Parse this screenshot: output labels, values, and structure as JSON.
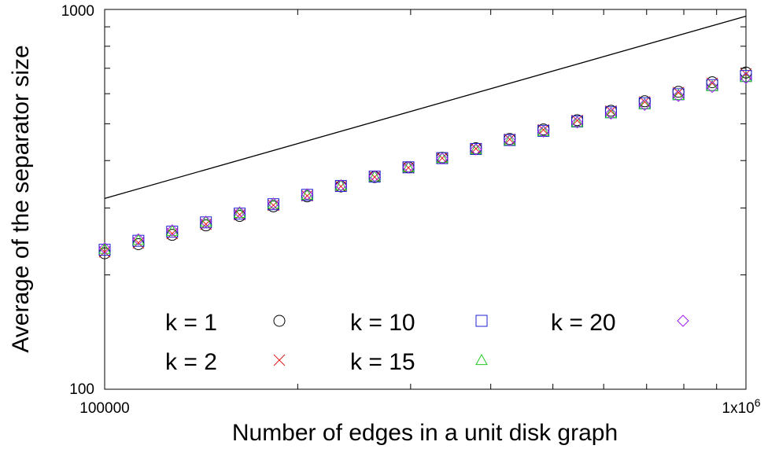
{
  "chart_data": {
    "type": "scatter",
    "xlabel": "Number of edges in a unit disk graph",
    "ylabel": "Average of the separator size",
    "x_scale": "log",
    "y_scale": "log",
    "xlim": [
      100000,
      1000000
    ],
    "ylim": [
      100,
      1000
    ],
    "x_tick_labels": [
      {
        "value": 100000,
        "text": "100000",
        "sup": ""
      },
      {
        "value": 1000000,
        "text": "1x10",
        "sup": "6"
      }
    ],
    "y_tick_labels": [
      {
        "value": 100,
        "text": "100"
      },
      {
        "value": 1000,
        "text": "1000"
      }
    ],
    "grid": false,
    "legend_location": "bottom-left inside",
    "reference_line": {
      "x": [
        100000,
        1000000
      ],
      "y": [
        318,
        960
      ],
      "color": "#000000"
    },
    "series": [
      {
        "name": "k = 1",
        "marker": "circle",
        "color": "#000000",
        "points_x": [
          100000,
          112884,
          127428,
          143849,
          162377,
          183303,
          206909,
          233575,
          263665,
          297635,
          335982,
          379269,
          428133,
          483293,
          545559,
          615848,
          695192,
          784760,
          885866,
          1000000
        ],
        "points_y": [
          228,
          241,
          255,
          270,
          286,
          303,
          322,
          342,
          362,
          384,
          407,
          431,
          456,
          483,
          511,
          541,
          573,
          607,
          643,
          682
        ]
      },
      {
        "name": "k = 2",
        "marker": "x",
        "color": "#e41a1c",
        "points_x": [
          100000,
          112884,
          127428,
          143849,
          162377,
          183303,
          206909,
          233575,
          263665,
          297635,
          335982,
          379269,
          428133,
          483293,
          545559,
          615848,
          695192,
          784760,
          885866,
          1000000
        ],
        "points_y": [
          230,
          243,
          257,
          272,
          288,
          305,
          323,
          342,
          362,
          383,
          406,
          430,
          455,
          482,
          510,
          540,
          571,
          604,
          639,
          676
        ]
      },
      {
        "name": "k = 10",
        "marker": "square",
        "color": "#1f1fd6",
        "points_x": [
          100000,
          112884,
          127428,
          143849,
          162377,
          183303,
          206909,
          233575,
          263665,
          297635,
          335982,
          379269,
          428133,
          483293,
          545559,
          615848,
          695192,
          784760,
          885866,
          1000000
        ],
        "points_y": [
          233,
          246,
          260,
          275,
          290,
          307,
          325,
          343,
          363,
          384,
          406,
          429,
          453,
          479,
          507,
          536,
          566,
          598,
          632,
          668
        ]
      },
      {
        "name": "k = 15",
        "marker": "triangle",
        "color": "#22cc22",
        "points_x": [
          100000,
          112884,
          127428,
          143849,
          162377,
          183303,
          206909,
          233575,
          263665,
          297635,
          335982,
          379269,
          428133,
          483293,
          545559,
          615848,
          695192,
          784760,
          885866,
          1000000
        ],
        "points_y": [
          234,
          247,
          261,
          276,
          291,
          308,
          325,
          344,
          363,
          384,
          406,
          428,
          452,
          478,
          505,
          533,
          563,
          595,
          628,
          663
        ]
      },
      {
        "name": "k = 20",
        "marker": "diamond",
        "color": "#a020f0",
        "points_x": [
          100000,
          112884,
          127428,
          143849,
          162377,
          183303,
          206909,
          233575,
          263665,
          297635,
          335982,
          379269,
          428133,
          483293,
          545559,
          615848,
          695192,
          784760,
          885866,
          1000000
        ],
        "points_y": [
          235,
          248,
          262,
          276,
          292,
          308,
          326,
          344,
          364,
          384,
          405,
          428,
          452,
          477,
          504,
          532,
          561,
          592,
          625,
          660
        ]
      }
    ]
  }
}
